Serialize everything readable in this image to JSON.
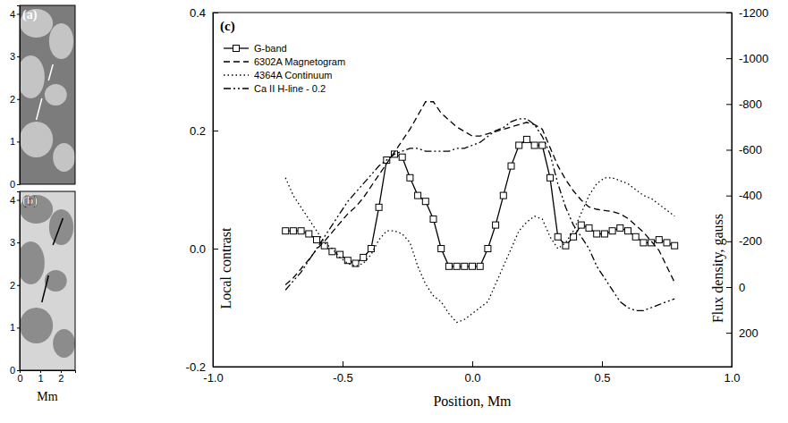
{
  "chart_data": [
    {
      "type": "image",
      "title": "(a)",
      "xlim": [
        0,
        2.7
      ],
      "ylim": [
        0,
        4.2
      ],
      "yticks": [
        0,
        1,
        2,
        3,
        4
      ],
      "tick_labels": "y"
    },
    {
      "type": "image",
      "title": "(b)",
      "xlim": [
        0,
        2.7
      ],
      "ylim": [
        0,
        4.2
      ],
      "xticks": [
        0,
        1,
        2
      ],
      "yticks": [
        0,
        1,
        2,
        3,
        4
      ],
      "xlabel": "Mm"
    },
    {
      "type": "line",
      "title": "(c)",
      "xlabel": "Position, Mm",
      "ylabel": "Local contrast",
      "y2label": "Flux density, gauss",
      "xlim": [
        -1.0,
        1.0
      ],
      "xticks": [
        {
          "value": -1.0,
          "label": "-1.0"
        },
        {
          "value": -0.5,
          "label": "-0.5"
        },
        {
          "value": 0,
          "label": "0.0"
        },
        {
          "value": 0.5,
          "label": "0.5"
        },
        {
          "value": 1.0,
          "label": "1.0"
        }
      ],
      "ylim": [
        -0.2,
        0.4
      ],
      "yticks": [
        -0.2,
        {
          "value": 0,
          "label": "0.0"
        },
        0.2,
        0.4
      ],
      "y2lim": [
        348,
        -1200
      ],
      "y2ticks": [
        200,
        0,
        -200,
        -400,
        -600,
        -800,
        -1000,
        -1200
      ],
      "legend": "upper left",
      "x": [
        -0.72,
        -0.69,
        -0.66,
        -0.63,
        -0.6,
        -0.57,
        -0.54,
        -0.51,
        -0.48,
        -0.45,
        -0.42,
        -0.39,
        -0.36,
        -0.33,
        -0.3,
        -0.27,
        -0.24,
        -0.21,
        -0.18,
        -0.15,
        -0.12,
        -0.09,
        -0.06,
        -0.03,
        0,
        0.03,
        0.06,
        0.09,
        0.12,
        0.15,
        0.18,
        0.21,
        0.24,
        0.27,
        0.3,
        0.33,
        0.36,
        0.39,
        0.42,
        0.45,
        0.48,
        0.51,
        0.54,
        0.57,
        0.6,
        0.63,
        0.66,
        0.69,
        0.72,
        0.75,
        0.78
      ],
      "series": [
        {
          "name": "G-band",
          "color": "#000000",
          "line_style": "solid",
          "marker": "square",
          "values": [
            0.03,
            0.03,
            0.03,
            0.025,
            0.015,
            0.005,
            -0.005,
            -0.01,
            -0.02,
            -0.025,
            -0.015,
            0.0,
            0.07,
            0.15,
            0.16,
            0.155,
            0.12,
            0.09,
            0.08,
            0.05,
            0.0,
            -0.03,
            -0.03,
            -0.03,
            -0.03,
            -0.03,
            0.0,
            0.04,
            0.09,
            0.14,
            0.175,
            0.185,
            0.175,
            0.175,
            0.12,
            0.02,
            0.005,
            0.02,
            0.04,
            0.035,
            0.025,
            0.025,
            0.03,
            0.035,
            0.03,
            0.02,
            0.01,
            0.01,
            0.015,
            0.01,
            0.005
          ]
        },
        {
          "name": "6302A Magnetogram",
          "color": "#000000",
          "line_style": "dashed",
          "axis": "y2",
          "values": [
            -10,
            -40,
            -80,
            -120,
            -165,
            -200,
            -240,
            -280,
            -320,
            -350,
            -390,
            -440,
            -490,
            -540,
            -590,
            -640,
            -690,
            -750,
            -810,
            -810,
            -760,
            -730,
            -700,
            -680,
            -660,
            -660,
            -670,
            -680,
            -690,
            -700,
            -710,
            -720,
            -710,
            -690,
            -610,
            -530,
            -470,
            -420,
            -380,
            -350,
            -340,
            -335,
            -330,
            -320,
            -300,
            -270,
            -240,
            -200,
            -160,
            -90,
            -20
          ]
        },
        {
          "name": "4364A Continuum",
          "color": "#000000",
          "line_style": "dotted",
          "values": [
            0.12,
            0.09,
            0.07,
            0.05,
            0.03,
            0.01,
            0.0,
            -0.015,
            -0.025,
            -0.03,
            -0.025,
            -0.01,
            0.015,
            0.03,
            0.03,
            0.025,
            0.01,
            -0.03,
            -0.06,
            -0.08,
            -0.09,
            -0.11,
            -0.125,
            -0.12,
            -0.11,
            -0.1,
            -0.09,
            -0.06,
            -0.03,
            0.0,
            0.03,
            0.045,
            0.055,
            0.05,
            0.02,
            0.0,
            0.01,
            0.03,
            0.06,
            0.09,
            0.11,
            0.12,
            0.12,
            0.115,
            0.11,
            0.1,
            0.09,
            0.085,
            0.075,
            0.065,
            0.055
          ]
        },
        {
          "name": "Ca II H-line - 0.2",
          "color": "#000000",
          "line_style": "dashdotdot",
          "values": [
            -0.07,
            -0.055,
            -0.04,
            -0.02,
            0.0,
            0.02,
            0.04,
            0.06,
            0.08,
            0.095,
            0.11,
            0.125,
            0.14,
            0.15,
            0.16,
            0.165,
            0.17,
            0.17,
            0.165,
            0.165,
            0.165,
            0.165,
            0.17,
            0.17,
            0.175,
            0.18,
            0.19,
            0.2,
            0.205,
            0.215,
            0.22,
            0.22,
            0.21,
            0.19,
            0.16,
            0.11,
            0.07,
            0.04,
            0.02,
            0.0,
            -0.03,
            -0.05,
            -0.07,
            -0.09,
            -0.1,
            -0.105,
            -0.105,
            -0.1,
            -0.095,
            -0.09,
            -0.085
          ]
        }
      ]
    }
  ]
}
